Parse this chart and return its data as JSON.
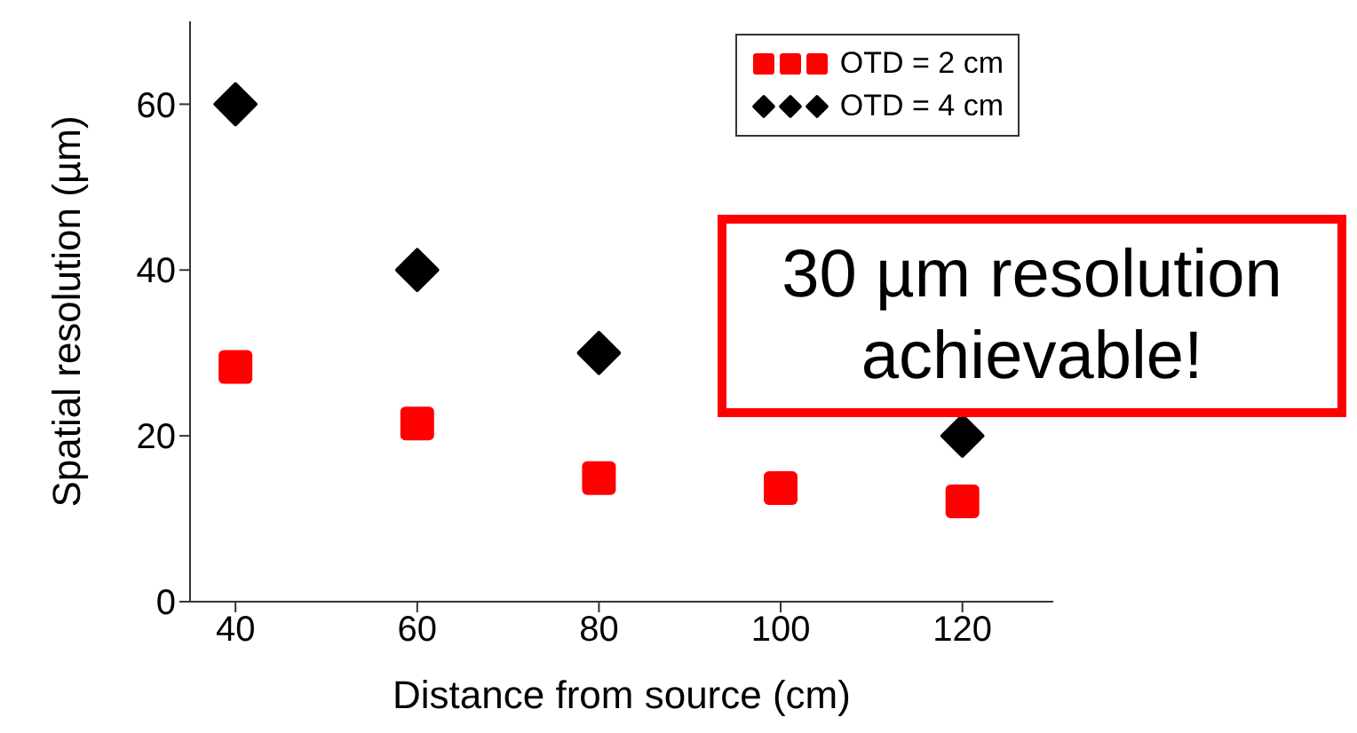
{
  "chart_data": {
    "type": "scatter",
    "xlabel": "Distance from source (cm)",
    "ylabel": "Spatial resolution (µm)",
    "x": [
      40,
      60,
      80,
      100,
      120
    ],
    "series": [
      {
        "name": "OTD = 2 cm",
        "color": "#ff0000",
        "marker": "square",
        "values": [
          28.3,
          21.5,
          14.9,
          13.7,
          12.1
        ]
      },
      {
        "name": "OTD = 4 cm",
        "color": "#000000",
        "marker": "diamond",
        "values": [
          60,
          40,
          30,
          null,
          20
        ]
      }
    ],
    "xlim": [
      35,
      130
    ],
    "xticks": [
      40,
      60,
      80,
      100,
      120
    ],
    "ylim": [
      0,
      70
    ],
    "yticks": [
      0,
      20,
      40,
      60
    ],
    "grid": false,
    "legend": "top right",
    "annotations": [
      "30 µm resolution achievable!"
    ]
  }
}
